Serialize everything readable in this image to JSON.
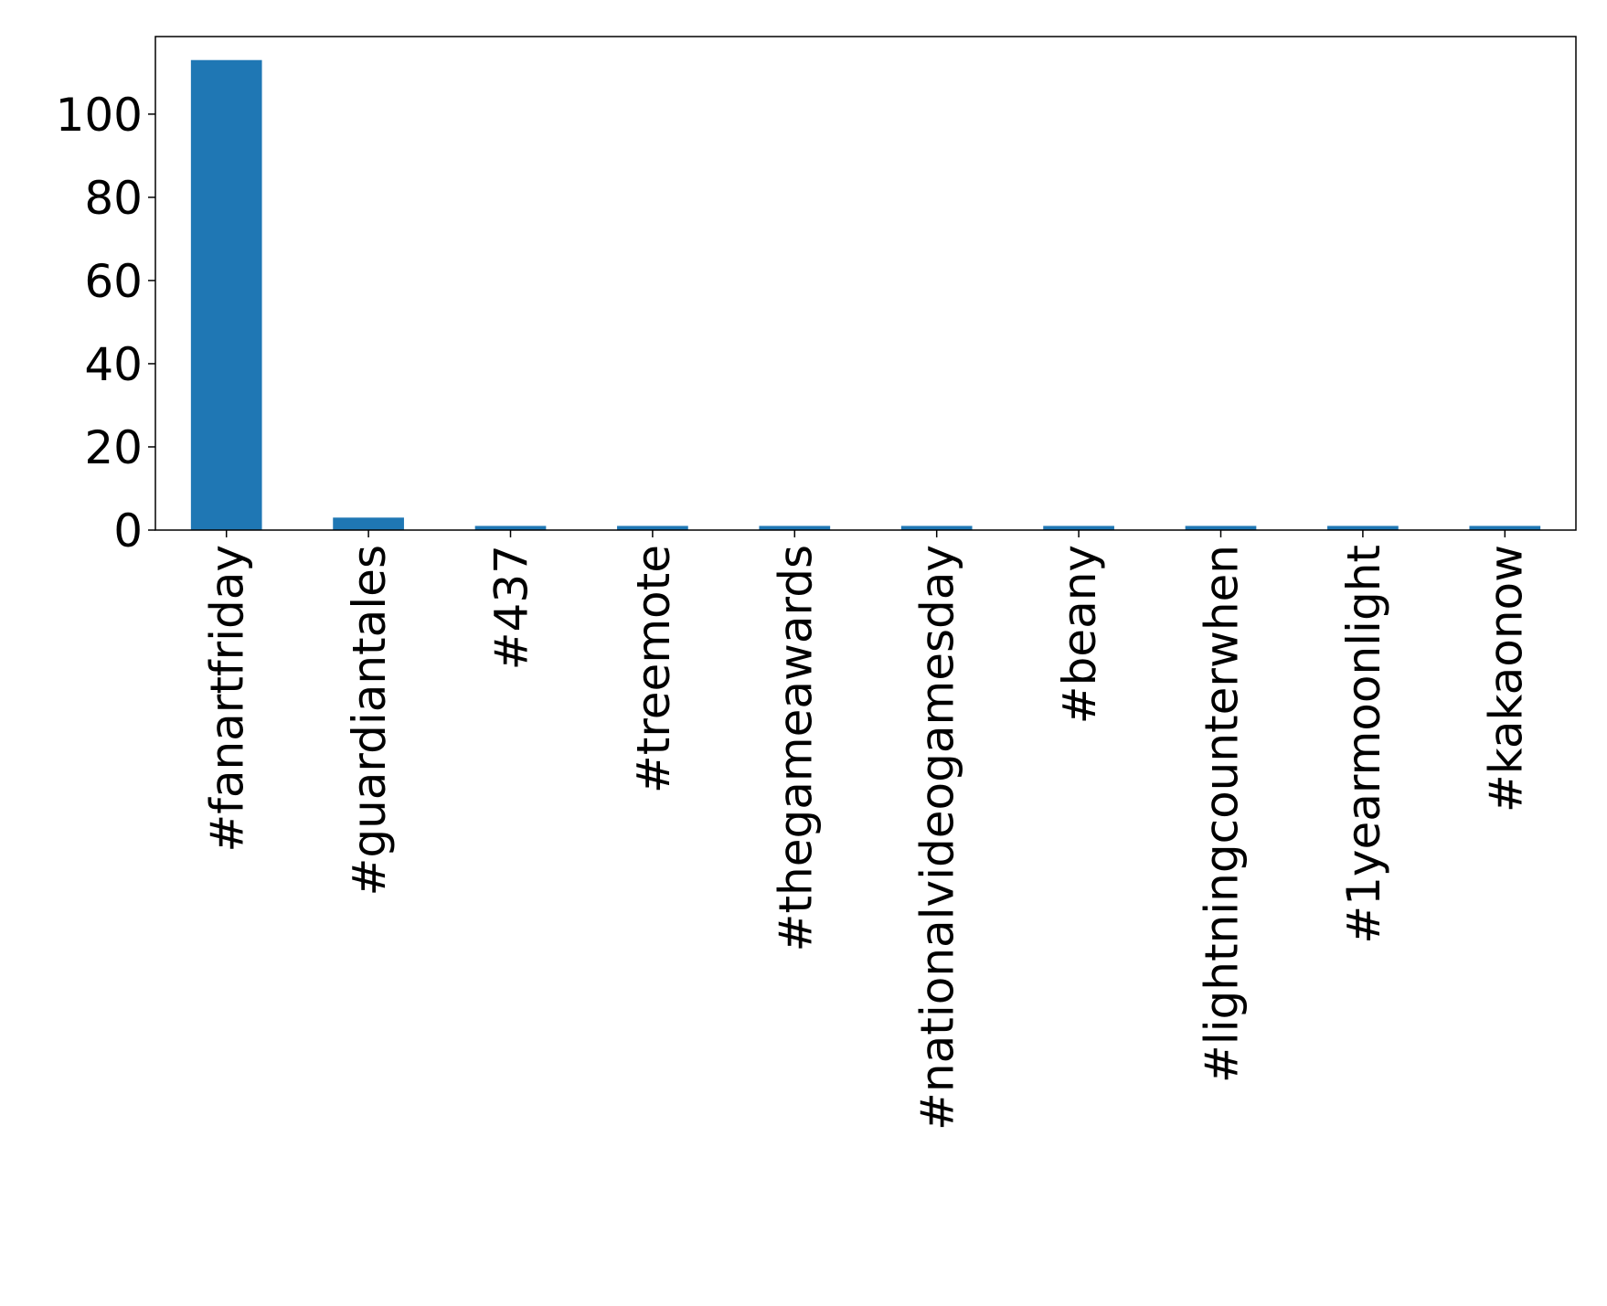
{
  "chart_data": {
    "type": "bar",
    "categories": [
      "#fanartfriday",
      "#guardiantales",
      "#437",
      "#treemote",
      "#thegameawards",
      "#nationalvideogamesday",
      "#beany",
      "#lightningcounterwhen",
      "#1yearmoonlight",
      "#kakaonow"
    ],
    "values": [
      113,
      3,
      1,
      1,
      1,
      1,
      1,
      1,
      1,
      1
    ],
    "color": "#1f77b4",
    "ylim": [
      0,
      118.65
    ],
    "yticks": [
      0,
      20,
      40,
      60,
      80,
      100
    ],
    "grid": false
  }
}
